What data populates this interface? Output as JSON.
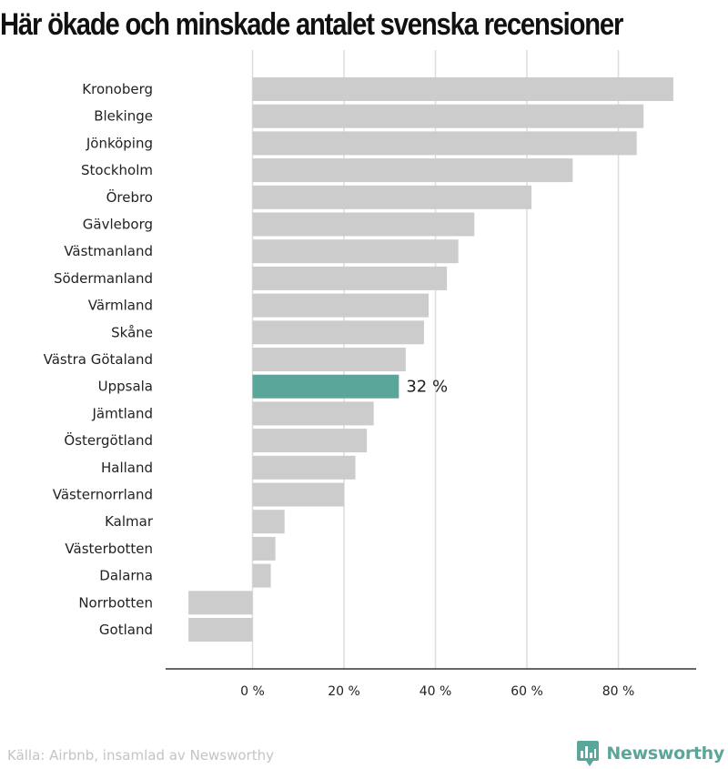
{
  "chart_data": {
    "type": "bar",
    "orientation": "horizontal",
    "title": "Här ökade och minskade antalet svenska recensioner",
    "categories": [
      "Kronoberg",
      "Blekinge",
      "Jönköping",
      "Stockholm",
      "Örebro",
      "Gävleborg",
      "Västmanland",
      "Södermanland",
      "Värmland",
      "Skåne",
      "Västra Götaland",
      "Uppsala",
      "Jämtland",
      "Östergötland",
      "Halland",
      "Västernorrland",
      "Kalmar",
      "Västerbotten",
      "Dalarna",
      "Norrbotten",
      "Gotland"
    ],
    "values": [
      92,
      85.5,
      84,
      70,
      61,
      48.5,
      45,
      42.5,
      38.5,
      37.5,
      33.5,
      32,
      26.5,
      25,
      22.5,
      20,
      7,
      5,
      4,
      -14,
      -14
    ],
    "highlight": "Uppsala",
    "data_labels": [
      {
        "category": "Uppsala",
        "text": "32 %"
      }
    ],
    "xlim": [
      -19,
      97
    ],
    "xticks": [
      0,
      20,
      40,
      60,
      80
    ],
    "xtick_labels": [
      "0 %",
      "20 %",
      "40 %",
      "60 %",
      "80 %"
    ],
    "grid": true,
    "xlabel": "",
    "ylabel": ""
  },
  "colors": {
    "bar": "#cccccc",
    "highlight": "#5aa69b",
    "grid": "#dddddd",
    "axis": "#333333",
    "text": "#222222"
  },
  "footer": {
    "source": "Källa: Airbnb, insamlad av Newsworthy",
    "brand_name": "Newsworthy",
    "brand_icon": "bar-chart-speech-bubble-icon"
  }
}
